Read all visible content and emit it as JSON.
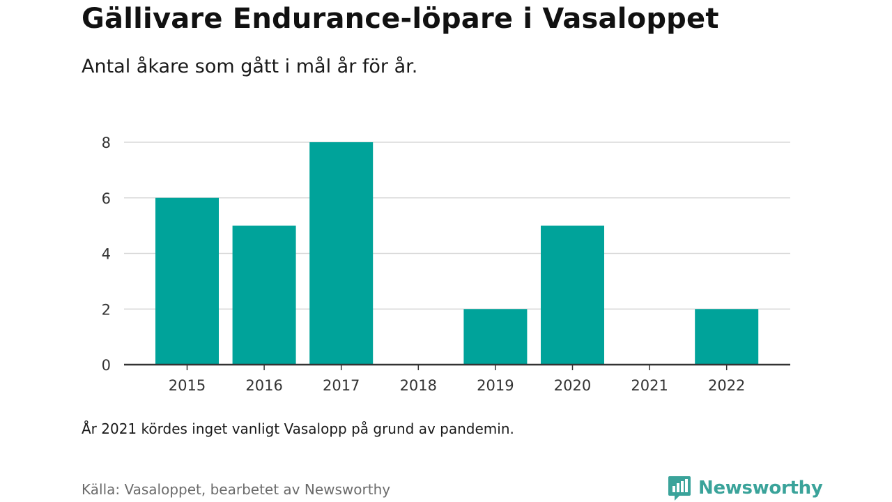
{
  "header": {
    "title": "Gällivare Endurance-löpare i Vasaloppet",
    "subtitle": "Antal åkare som gått i mål år för år."
  },
  "footer": {
    "note": "År 2021 kördes inget vanligt Vasalopp på grund av pandemin.",
    "source": "Källa: Vasaloppet, bearbetet av Newsworthy",
    "brand": "Newsworthy"
  },
  "icons": {
    "brand_logo": "bar-chart-speech-bubble-icon"
  },
  "colors": {
    "bar": "#00a39a",
    "grid": "#d9d9d9",
    "axis": "#333333",
    "brand": "#3aa39a"
  },
  "chart_data": {
    "type": "bar",
    "title": "Gällivare Endurance-löpare i Vasaloppet",
    "subtitle": "Antal åkare som gått i mål år för år.",
    "xlabel": "",
    "ylabel": "",
    "categories": [
      "2015",
      "2016",
      "2017",
      "2018",
      "2019",
      "2020",
      "2021",
      "2022"
    ],
    "values": [
      6,
      5,
      8,
      0,
      2,
      5,
      0,
      2
    ],
    "ylim": [
      0,
      8
    ],
    "yticks": [
      0,
      2,
      4,
      6,
      8
    ],
    "grid": true,
    "legend": "none"
  }
}
